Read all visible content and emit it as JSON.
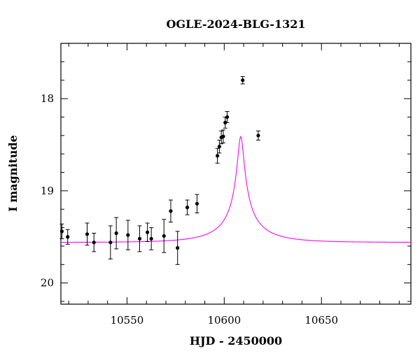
{
  "chart_data": {
    "type": "scatter",
    "title": "OGLE-2024-BLG-1321",
    "xlabel": "HJD - 2450000",
    "ylabel": "I magnitude",
    "xlim": [
      10516,
      10696
    ],
    "ylim": [
      20.23,
      17.4
    ],
    "y_inverted": true,
    "x_ticks": [
      10550,
      10600,
      10650
    ],
    "y_ticks": [
      18,
      19,
      20
    ],
    "model_color": "#ff00ff",
    "model": {
      "type": "point-lens microlensing fit",
      "t0": 10608.5,
      "tE": 26,
      "u0": 0.06,
      "baseline_mag": 19.56,
      "blend_fraction": 0.12
    },
    "series": [
      {
        "points": [
          {
            "x": 10516.5,
            "y": 19.44,
            "err": 0.08
          },
          {
            "x": 10519.5,
            "y": 19.5,
            "err": 0.08
          },
          {
            "x": 10529.5,
            "y": 19.47,
            "err": 0.12
          },
          {
            "x": 10533.0,
            "y": 19.56,
            "err": 0.1
          },
          {
            "x": 10541.5,
            "y": 19.56,
            "err": 0.18
          },
          {
            "x": 10544.5,
            "y": 19.46,
            "err": 0.17
          },
          {
            "x": 10550.5,
            "y": 19.48,
            "err": 0.16
          },
          {
            "x": 10556.5,
            "y": 19.52,
            "err": 0.14
          },
          {
            "x": 10560.5,
            "y": 19.45,
            "err": 0.1
          },
          {
            "x": 10562.5,
            "y": 19.52,
            "err": 0.12
          },
          {
            "x": 10569.0,
            "y": 19.49,
            "err": 0.18
          },
          {
            "x": 10572.5,
            "y": 19.22,
            "err": 0.12
          },
          {
            "x": 10576.0,
            "y": 19.62,
            "err": 0.18
          },
          {
            "x": 10581.0,
            "y": 19.18,
            "err": 0.08
          },
          {
            "x": 10586.0,
            "y": 19.14,
            "err": 0.1
          },
          {
            "x": 10596.5,
            "y": 18.62,
            "err": 0.08
          },
          {
            "x": 10597.5,
            "y": 18.52,
            "err": 0.07
          },
          {
            "x": 10598.5,
            "y": 18.42,
            "err": 0.07
          },
          {
            "x": 10599.5,
            "y": 18.41,
            "err": 0.07
          },
          {
            "x": 10600.5,
            "y": 18.26,
            "err": 0.06
          },
          {
            "x": 10601.5,
            "y": 18.2,
            "err": 0.06
          },
          {
            "x": 10609.5,
            "y": 17.8,
            "err": 0.04
          },
          {
            "x": 10617.5,
            "y": 18.4,
            "err": 0.05
          }
        ]
      }
    ]
  }
}
